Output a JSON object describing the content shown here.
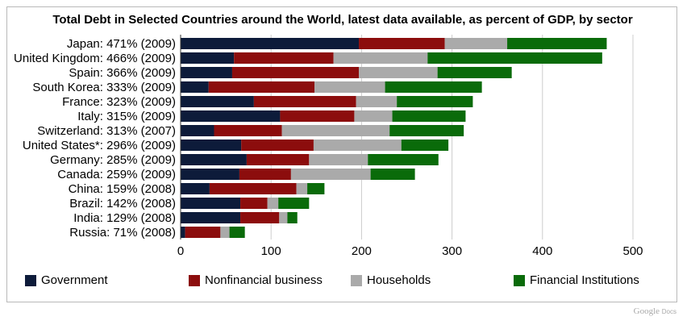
{
  "chart_data": {
    "type": "bar",
    "orientation": "horizontal",
    "stacked": true,
    "title": "Total Debt in Selected Countries around the World, latest data available, as percent of GDP, by sector",
    "xlabel": "",
    "ylabel": "",
    "xlim": [
      0,
      500
    ],
    "xticks": [
      "0",
      "100",
      "200",
      "300",
      "400",
      "500"
    ],
    "grid": true,
    "legend_position": "bottom",
    "categories": [
      "Japan: 471% (2009)",
      "United Kingdom: 466% (2009)",
      "Spain: 366% (2009)",
      "South Korea: 333% (2009)",
      "France: 323% (2009)",
      "Italy: 315% (2009)",
      "Switzerland: 313% (2007)",
      "United States*: 296% (2009)",
      "Germany: 285% (2009)",
      "Canada: 259% (2009)",
      "China: 159% (2008)",
      "Brazil: 142% (2008)",
      "India: 129% (2008)",
      "Russia: 71% (2008)"
    ],
    "series": [
      {
        "name": "Government",
        "color": "#0d1b3a",
        "values": [
          197,
          59,
          57,
          31,
          81,
          110,
          37,
          67,
          73,
          65,
          32,
          66,
          66,
          5
        ]
      },
      {
        "name": "Nonfinancial business",
        "color": "#8c0d0d",
        "values": [
          95,
          110,
          140,
          117,
          113,
          82,
          75,
          80,
          69,
          57,
          96,
          30,
          43,
          39
        ]
      },
      {
        "name": "Households",
        "color": "#aaaaaa",
        "values": [
          69,
          104,
          87,
          78,
          45,
          42,
          119,
          97,
          65,
          88,
          12,
          12,
          9,
          10
        ]
      },
      {
        "name": "Financial Institutions",
        "color": "#0a6b0a",
        "values": [
          110,
          193,
          82,
          107,
          84,
          81,
          82,
          52,
          78,
          49,
          19,
          34,
          11,
          17
        ]
      }
    ]
  },
  "watermark": {
    "brand": "Google",
    "product": "Docs"
  }
}
